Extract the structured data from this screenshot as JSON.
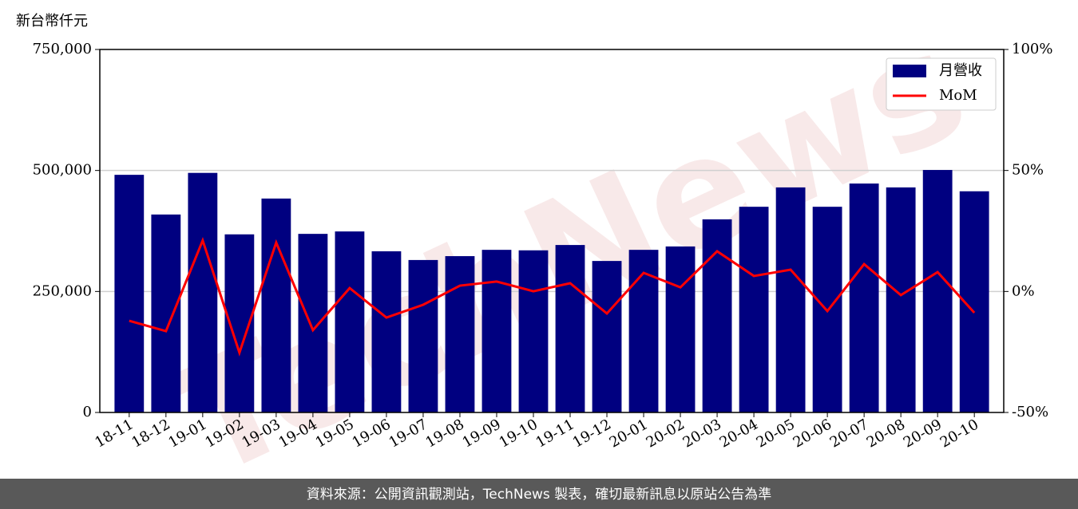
{
  "chart_data": {
    "type": "bar",
    "y_label": "新台幣仟元",
    "watermark": "TechNews",
    "source": "資料來源：公開資訊觀測站，TechNews 製表，確切最新訊息以原站公告為準",
    "categories": [
      "18-11",
      "18-12",
      "19-01",
      "19-02",
      "19-03",
      "19-04",
      "19-05",
      "19-06",
      "19-07",
      "19-08",
      "19-09",
      "19-10",
      "19-11",
      "19-12",
      "20-01",
      "20-02",
      "20-03",
      "20-04",
      "20-05",
      "20-06",
      "20-07",
      "20-08",
      "20-09",
      "20-10"
    ],
    "series": [
      {
        "name": "月營收",
        "type": "bar",
        "color": "#000080",
        "values": [
          491000,
          409000,
          495000,
          368000,
          442000,
          369000,
          374000,
          333000,
          315000,
          323000,
          336000,
          335000,
          346000,
          313000,
          336000,
          343000,
          399000,
          425000,
          465000,
          425000,
          473000,
          465000,
          501000,
          457000
        ]
      },
      {
        "name": "MoM",
        "type": "line",
        "color": "#ff0000",
        "axis": "y2",
        "values": [
          -12.1,
          -16.4,
          21.1,
          -25.3,
          20.2,
          -16,
          1.4,
          -10.8,
          -5.5,
          2.4,
          4.1,
          0.1,
          3.4,
          -9.1,
          7.7,
          1.7,
          16.6,
          6.4,
          9.0,
          -8.1,
          11.3,
          -1.5,
          8.0,
          -8.8
        ]
      }
    ],
    "ylim": [
      0,
      750000
    ],
    "yticks": [
      0,
      {
        "value": 250000,
        "label": "250,000"
      },
      {
        "value": 500000,
        "label": "500,000"
      },
      {
        "value": 750000,
        "label": "750,000"
      }
    ],
    "y2lim": [
      -50,
      100
    ],
    "y2ticks": [
      {
        "value": -50,
        "label": "-50%"
      },
      {
        "value": 0,
        "label": "0%"
      },
      {
        "value": 50,
        "label": "50%"
      },
      {
        "value": 100,
        "label": "100%"
      }
    ],
    "grid": true,
    "legend": "upper right"
  }
}
